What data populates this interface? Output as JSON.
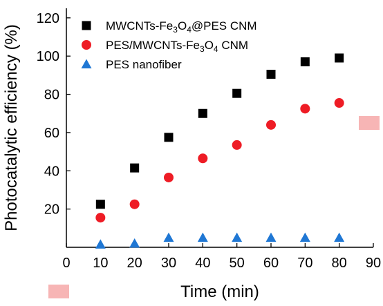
{
  "chart_data": {
    "type": "scatter",
    "xlabel": "Time (min)",
    "ylabel": "Photocatalytic efficiency (%)",
    "xlim": [
      0,
      90
    ],
    "ylim": [
      0,
      125
    ],
    "xticks": [
      0,
      10,
      20,
      30,
      40,
      50,
      60,
      70,
      80,
      90
    ],
    "yticks": [
      20,
      40,
      60,
      80,
      100,
      120
    ],
    "grid": false,
    "legend_position": "top-left",
    "series": [
      {
        "name": "MWCNTs-Fe3O4@PES CNM",
        "name_parts": [
          "MWCNTs-Fe",
          "3",
          "O",
          "4",
          "@PES CNM"
        ],
        "marker": "square",
        "color": "#000000",
        "x": [
          10,
          20,
          30,
          40,
          50,
          60,
          70,
          80
        ],
        "y": [
          22.5,
          41.5,
          57.5,
          70,
          80.5,
          90.5,
          97,
          99
        ]
      },
      {
        "name": "PES/MWCNTs-Fe3O4 CNM",
        "name_parts": [
          "PES/MWCNTs-Fe",
          "3",
          "O",
          "4",
          " CNM"
        ],
        "marker": "circle",
        "color": "#ee1c25",
        "x": [
          10,
          20,
          30,
          40,
          50,
          60,
          70,
          80
        ],
        "y": [
          15.5,
          22.5,
          36.5,
          46.5,
          53.5,
          64,
          72.5,
          75.5
        ]
      },
      {
        "name": "PES nanofiber",
        "name_parts": [
          "PES nanofiber"
        ],
        "marker": "triangle",
        "color": "#1f77d4",
        "x": [
          10,
          20,
          30,
          40,
          50,
          60,
          70,
          80
        ],
        "y": [
          1.5,
          2,
          5,
          5,
          5,
          5,
          5,
          5
        ]
      }
    ]
  },
  "decor": {
    "highlight_color": "#f7b5b5"
  }
}
